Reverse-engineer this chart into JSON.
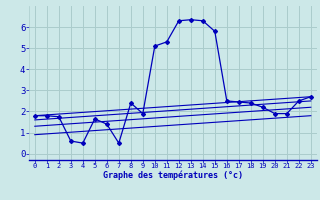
{
  "title": "",
  "xlabel": "Graphe des températures (°c)",
  "ylabel": "",
  "background_color": "#cce8e8",
  "grid_color": "#aacccc",
  "line_color": "#0000bb",
  "xlim": [
    -0.5,
    23.5
  ],
  "ylim": [
    -0.3,
    7.0
  ],
  "xtick_labels": [
    "0",
    "1",
    "2",
    "3",
    "4",
    "5",
    "6",
    "7",
    "8",
    "9",
    "10",
    "11",
    "12",
    "13",
    "14",
    "15",
    "16",
    "17",
    "18",
    "19",
    "20",
    "21",
    "22",
    "23"
  ],
  "xticks": [
    0,
    1,
    2,
    3,
    4,
    5,
    6,
    7,
    8,
    9,
    10,
    11,
    12,
    13,
    14,
    15,
    16,
    17,
    18,
    19,
    20,
    21,
    22,
    23
  ],
  "yticks": [
    0,
    1,
    2,
    3,
    4,
    5,
    6
  ],
  "main_series_x": [
    0,
    1,
    2,
    3,
    4,
    5,
    6,
    7,
    8,
    9,
    10,
    11,
    12,
    13,
    14,
    15,
    16,
    17,
    18,
    19,
    20,
    21,
    22,
    23
  ],
  "main_series_y": [
    1.8,
    1.8,
    1.75,
    0.6,
    0.5,
    1.65,
    1.4,
    0.5,
    2.4,
    1.9,
    5.1,
    5.3,
    6.3,
    6.35,
    6.3,
    5.8,
    2.5,
    2.45,
    2.4,
    2.2,
    1.9,
    1.9,
    2.5,
    2.7
  ],
  "line1_x": [
    0,
    23
  ],
  "line1_y": [
    1.8,
    2.7
  ],
  "line2_x": [
    0,
    23
  ],
  "line2_y": [
    1.6,
    2.5
  ],
  "line3_x": [
    0,
    23
  ],
  "line3_y": [
    1.3,
    2.2
  ],
  "line4_x": [
    0,
    23
  ],
  "line4_y": [
    0.9,
    1.8
  ]
}
